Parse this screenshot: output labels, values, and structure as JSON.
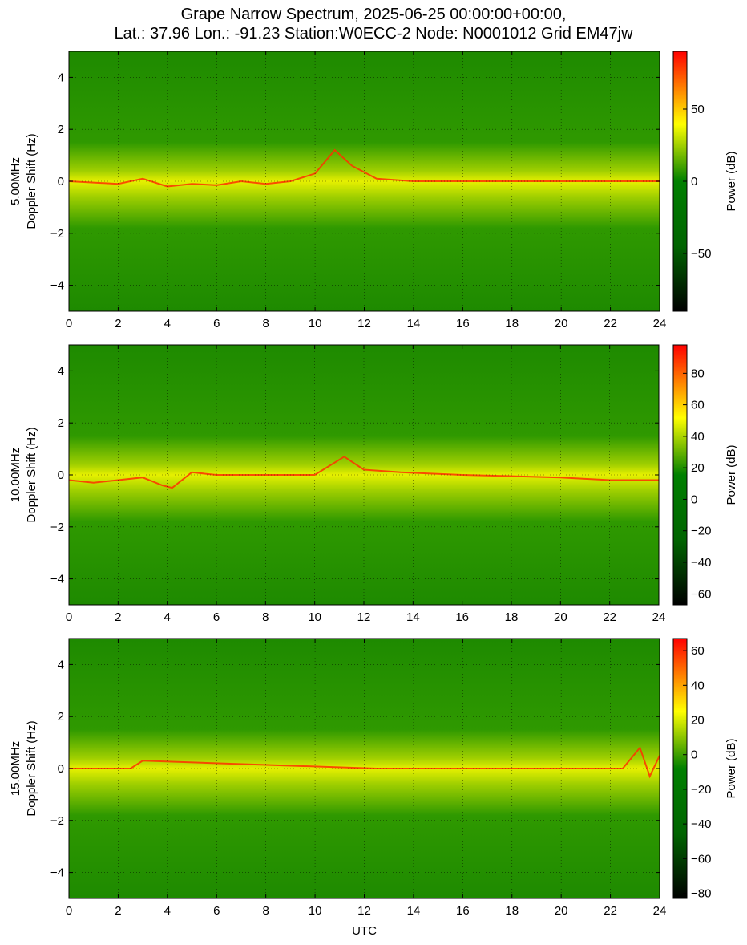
{
  "title": {
    "line1": "Grape Narrow Spectrum, 2025-06-25 00:00:00+00:00,",
    "line2": "Lat.: 37.96 Lon.: -91.23 Station:W0ECC-2 Node: N0001012 Grid EM47jw"
  },
  "colors": {
    "low": "#000000",
    "mid_low": "#006400",
    "mid": "#008000",
    "mid_high": "#ffff00",
    "high": "#ff0000"
  },
  "chart_data": [
    {
      "type": "heatmap",
      "frequency_label": "5.00MHz",
      "ylabel": "Doppler Shift (Hz)",
      "xlabel": "",
      "xlim": [
        0,
        24
      ],
      "ylim": [
        -5,
        5
      ],
      "x_ticks": [
        0,
        2,
        4,
        6,
        8,
        10,
        12,
        14,
        16,
        18,
        20,
        22,
        24
      ],
      "y_ticks": [
        4,
        2,
        0,
        -2,
        -4
      ],
      "grid": true,
      "colorbar": {
        "label": "Power (dB)",
        "range": [
          -90,
          90
        ],
        "ticks": [
          50,
          0,
          -50
        ]
      },
      "carrier_trace": [
        {
          "x": 0,
          "y": 0.0
        },
        {
          "x": 1,
          "y": -0.05
        },
        {
          "x": 2,
          "y": -0.1
        },
        {
          "x": 3,
          "y": 0.1
        },
        {
          "x": 4,
          "y": -0.2
        },
        {
          "x": 5,
          "y": -0.1
        },
        {
          "x": 6,
          "y": -0.15
        },
        {
          "x": 7,
          "y": 0.0
        },
        {
          "x": 8,
          "y": -0.1
        },
        {
          "x": 9,
          "y": 0.0
        },
        {
          "x": 10,
          "y": 0.3
        },
        {
          "x": 10.8,
          "y": 1.2
        },
        {
          "x": 11.5,
          "y": 0.6
        },
        {
          "x": 12.5,
          "y": 0.1
        },
        {
          "x": 14,
          "y": 0.0
        },
        {
          "x": 24,
          "y": 0.0
        }
      ]
    },
    {
      "type": "heatmap",
      "frequency_label": "10.00MHz",
      "ylabel": "Doppler Shift (Hz)",
      "xlabel": "",
      "xlim": [
        0,
        24
      ],
      "ylim": [
        -5,
        5
      ],
      "x_ticks": [
        0,
        2,
        4,
        6,
        8,
        10,
        12,
        14,
        16,
        18,
        20,
        22,
        24
      ],
      "y_ticks": [
        4,
        2,
        0,
        -2,
        -4
      ],
      "grid": true,
      "colorbar": {
        "label": "Power (dB)",
        "range": [
          -67,
          98
        ],
        "ticks": [
          80,
          60,
          40,
          20,
          0,
          -20,
          -40,
          -60
        ]
      },
      "carrier_trace": [
        {
          "x": 0,
          "y": -0.2
        },
        {
          "x": 1,
          "y": -0.3
        },
        {
          "x": 2,
          "y": -0.2
        },
        {
          "x": 3,
          "y": -0.1
        },
        {
          "x": 3.8,
          "y": -0.4
        },
        {
          "x": 4.2,
          "y": -0.5
        },
        {
          "x": 5,
          "y": 0.1
        },
        {
          "x": 6,
          "y": 0.0
        },
        {
          "x": 10,
          "y": 0.0
        },
        {
          "x": 11.2,
          "y": 0.7
        },
        {
          "x": 12,
          "y": 0.2
        },
        {
          "x": 13.5,
          "y": 0.1
        },
        {
          "x": 16,
          "y": 0.0
        },
        {
          "x": 20,
          "y": -0.1
        },
        {
          "x": 22,
          "y": -0.2
        },
        {
          "x": 24,
          "y": -0.2
        }
      ]
    },
    {
      "type": "heatmap",
      "frequency_label": "15.00MHz",
      "ylabel": "Doppler Shift (Hz)",
      "xlabel": "UTC",
      "xlim": [
        0,
        24
      ],
      "ylim": [
        -5,
        5
      ],
      "x_ticks": [
        0,
        2,
        4,
        6,
        8,
        10,
        12,
        14,
        16,
        18,
        20,
        22,
        24
      ],
      "y_ticks": [
        4,
        2,
        0,
        -2,
        -4
      ],
      "grid": true,
      "colorbar": {
        "label": "Power (dB)",
        "range": [
          -83,
          67
        ],
        "ticks": [
          60,
          40,
          20,
          0,
          -20,
          -40,
          -60,
          -80
        ]
      },
      "carrier_trace": [
        {
          "x": 0,
          "y": 0.0
        },
        {
          "x": 1,
          "y": 0.0
        },
        {
          "x": 2.5,
          "y": 0.0
        },
        {
          "x": 3,
          "y": 0.3
        },
        {
          "x": 12.5,
          "y": 0.0
        },
        {
          "x": 16,
          "y": 0.0
        },
        {
          "x": 20,
          "y": 0.0
        },
        {
          "x": 22.5,
          "y": 0.0
        },
        {
          "x": 23.2,
          "y": 0.8
        },
        {
          "x": 23.6,
          "y": -0.3
        },
        {
          "x": 24,
          "y": 0.5
        }
      ]
    }
  ]
}
